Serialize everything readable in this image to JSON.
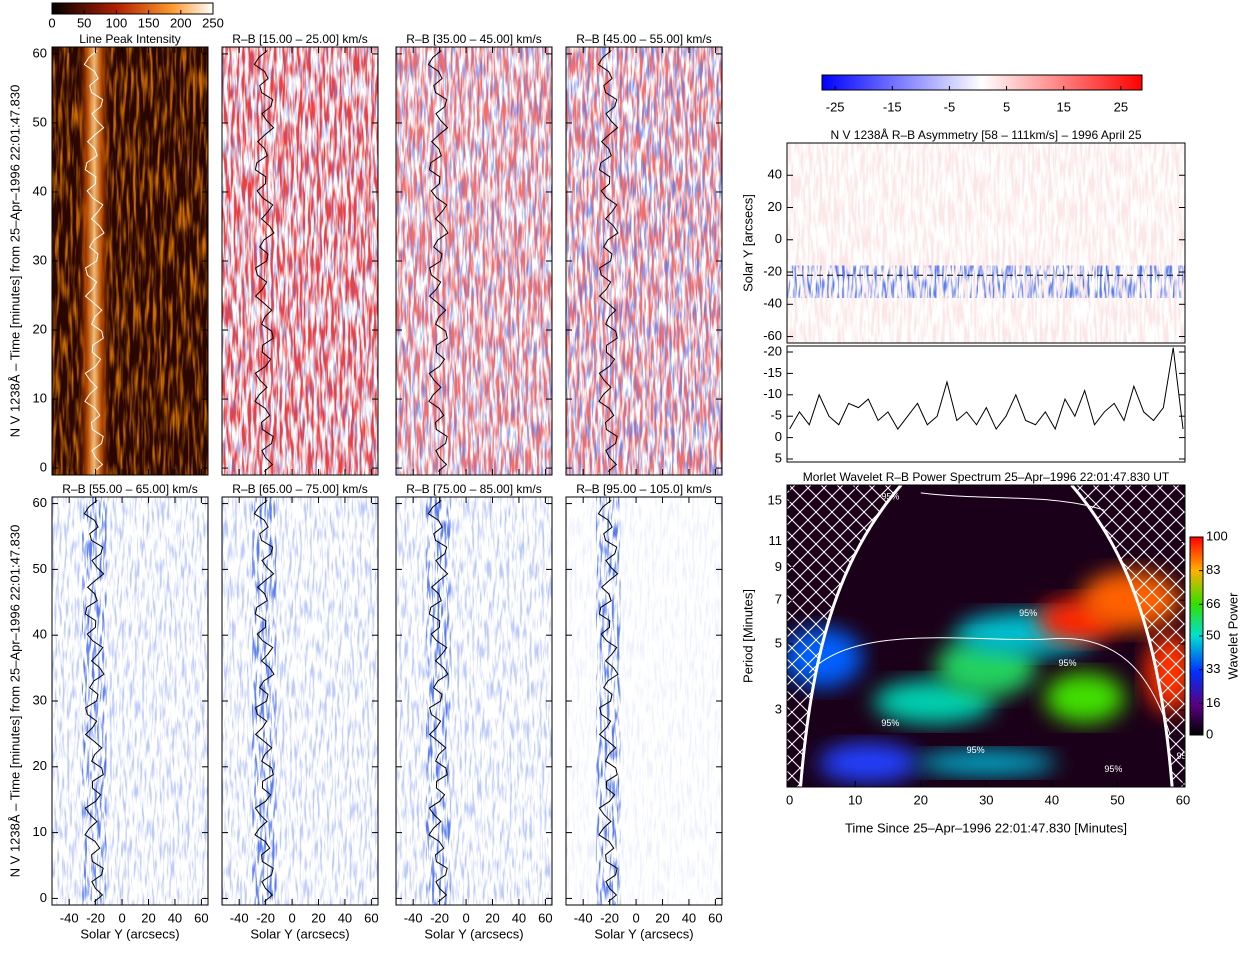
{
  "chart_data": [
    {
      "type": "heatmap",
      "title": "Line Peak Intensity",
      "colormap": "hot",
      "xlim": [
        -53,
        65
      ],
      "ylim": [
        -1,
        61
      ],
      "xticks": [
        -40,
        -20,
        0,
        20,
        40,
        60
      ],
      "yticks": [
        0,
        10,
        20,
        30,
        40,
        50,
        60
      ],
      "ylabel": "N V 1238Å – Time [minutes] from 25–Apr–1996 22:01:47.830",
      "colorbar": {
        "lim": [
          0,
          250
        ],
        "ticks": [
          0,
          50,
          100,
          150,
          200,
          250
        ]
      }
    },
    {
      "type": "heatmap",
      "title": "R–B [15.00 – 25.00] km/s",
      "colormap": "bwr",
      "xlim": [
        -53,
        65
      ],
      "ylim": [
        -1,
        61
      ],
      "xticks": [
        -40,
        -20,
        0,
        20,
        40,
        60
      ],
      "yticks": [
        0,
        10,
        20,
        30,
        40,
        50,
        60
      ]
    },
    {
      "type": "heatmap",
      "title": "R–B [35.00 – 45.00] km/s",
      "colormap": "bwr",
      "xlim": [
        -53,
        65
      ],
      "ylim": [
        -1,
        61
      ],
      "xticks": [
        -40,
        -20,
        0,
        20,
        40,
        60
      ],
      "yticks": [
        0,
        10,
        20,
        30,
        40,
        50,
        60
      ]
    },
    {
      "type": "heatmap",
      "title": "R–B [45.00 – 55.00] km/s",
      "colormap": "bwr",
      "xlim": [
        -53,
        65
      ],
      "ylim": [
        -1,
        61
      ],
      "xticks": [
        -40,
        -20,
        0,
        20,
        40,
        60
      ],
      "yticks": [
        0,
        10,
        20,
        30,
        40,
        50,
        60
      ]
    },
    {
      "type": "heatmap",
      "title": "R–B [55.00 – 65.00] km/s",
      "colormap": "bwr",
      "xlim": [
        -53,
        65
      ],
      "ylim": [
        -1,
        61
      ],
      "xticks": [
        -40,
        -20,
        0,
        20,
        40,
        60
      ],
      "yticks": [
        0,
        10,
        20,
        30,
        40,
        50,
        60
      ],
      "xlabel": "Solar Y (arcsecs)",
      "ylabel": "N V 1238Å – Time [minutes] from 25–Apr–1996 22:01:47.830"
    },
    {
      "type": "heatmap",
      "title": "R–B [65.00 – 75.00] km/s",
      "colormap": "bwr",
      "xlim": [
        -53,
        65
      ],
      "ylim": [
        -1,
        61
      ],
      "xticks": [
        -40,
        -20,
        0,
        20,
        40,
        60
      ],
      "yticks": [
        0,
        10,
        20,
        30,
        40,
        50,
        60
      ],
      "xlabel": "Solar Y (arcsecs)"
    },
    {
      "type": "heatmap",
      "title": "R–B [75.00 – 85.00] km/s",
      "colormap": "bwr",
      "xlim": [
        -53,
        65
      ],
      "ylim": [
        -1,
        61
      ],
      "xticks": [
        -40,
        -20,
        0,
        20,
        40,
        60
      ],
      "yticks": [
        0,
        10,
        20,
        30,
        40,
        50,
        60
      ],
      "xlabel": "Solar Y (arcsecs)"
    },
    {
      "type": "heatmap",
      "title": "R–B [95.00 – 105.0] km/s",
      "colormap": "bwr",
      "xlim": [
        -53,
        65
      ],
      "ylim": [
        -1,
        61
      ],
      "xticks": [
        -40,
        -20,
        0,
        20,
        40,
        60
      ],
      "yticks": [
        0,
        10,
        20,
        30,
        40,
        50,
        60
      ],
      "xlabel": "Solar Y (arcsecs)"
    },
    {
      "type": "heatmap",
      "title": "N V 1238Å R–B Asymmetry [58 – 111km/s] – 1996 April 25",
      "colormap": "bwr",
      "xlim": [
        -0.4,
        60.3
      ],
      "ylim": [
        -64,
        60
      ],
      "yticks": [
        -60,
        -40,
        -20,
        0,
        20,
        40
      ],
      "ylabel": "Solar Y [arcsecs]",
      "hline": -22,
      "colorbar": {
        "lim": [
          -27.3,
          28.7
        ],
        "ticks": [
          -25,
          -15,
          -5,
          5,
          15,
          25
        ]
      }
    },
    {
      "type": "line",
      "xlim": [
        -0.4,
        60.3
      ],
      "ylim": [
        5.7,
        -21.4
      ],
      "yticks": [
        -20,
        -15,
        -10,
        -5,
        0,
        5
      ],
      "color": "#000000",
      "x": [
        0,
        1.5,
        3,
        4.5,
        6,
        7.5,
        9,
        10.5,
        12,
        13.5,
        15,
        16.5,
        18,
        19.5,
        21,
        22.5,
        24,
        25.5,
        27,
        28.5,
        30,
        31.5,
        33,
        34.5,
        36,
        37.5,
        39,
        40.5,
        42,
        43.5,
        45,
        46.5,
        48,
        49.5,
        51,
        52.5,
        54,
        55.5,
        57,
        58.5,
        60
      ],
      "values": [
        -2,
        -6,
        -3,
        -10,
        -5,
        -3,
        -8,
        -7,
        -9,
        -4,
        -6,
        -2,
        -5,
        -8,
        -3,
        -5,
        -13,
        -4,
        -6,
        -3,
        -7,
        -2,
        -5,
        -10,
        -4,
        -3,
        -6,
        -2,
        -9,
        -5,
        -11,
        -3,
        -6,
        -8,
        -4,
        -12,
        -6,
        -4,
        -7,
        -21,
        -2
      ]
    },
    {
      "type": "wavelet",
      "title": "Morlet Wavelet R–B Power Spectrum 25–Apr–1996 22:01:47.830 UT",
      "colormap": "rainbow",
      "log": true,
      "xlim": [
        -0.4,
        60.3
      ],
      "ylim": [
        1.66,
        17
      ],
      "xticks": [
        0,
        10,
        20,
        30,
        40,
        50,
        60
      ],
      "yticks": [
        3,
        5,
        7,
        9,
        11,
        15
      ],
      "xlabel": "Time Since 25–Apr–1996 22:01:47.830 [Minutes]",
      "ylabel": "Period [Minutes]",
      "contour_label": "95%",
      "colorbar": {
        "lim": [
          0,
          100
        ],
        "ticks": [
          0,
          16,
          33,
          50,
          66,
          83,
          100
        ],
        "label": "Wavelet Power"
      }
    }
  ]
}
